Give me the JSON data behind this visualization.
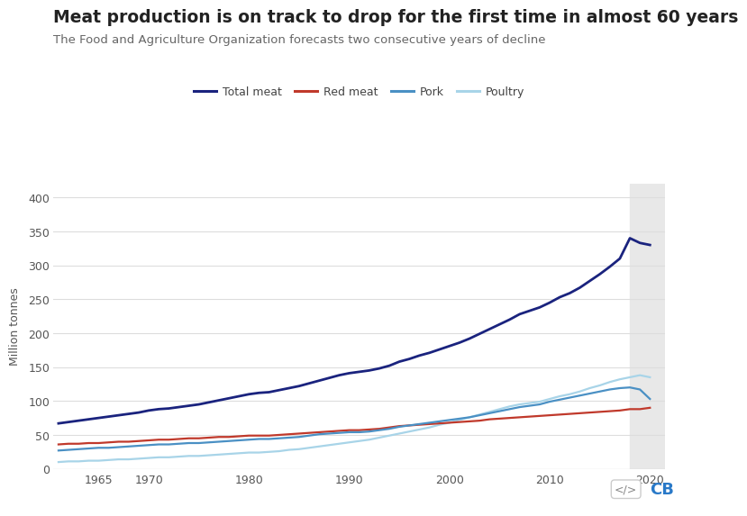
{
  "title": "Meat production is on track to drop for the first time in almost 60 years",
  "subtitle": "The Food and Agriculture Organization forecasts two consecutive years of decline",
  "ylabel": "Million tonnes",
  "title_fontsize": 13.5,
  "subtitle_fontsize": 9.5,
  "background_color": "#ffffff",
  "plot_bg_color": "#ffffff",
  "shade_color": "#e8e8e8",
  "shade_start": 2018,
  "shade_end": 2021.5,
  "years": [
    1961,
    1962,
    1963,
    1964,
    1965,
    1966,
    1967,
    1968,
    1969,
    1970,
    1971,
    1972,
    1973,
    1974,
    1975,
    1976,
    1977,
    1978,
    1979,
    1980,
    1981,
    1982,
    1983,
    1984,
    1985,
    1986,
    1987,
    1988,
    1989,
    1990,
    1991,
    1992,
    1993,
    1994,
    1995,
    1996,
    1997,
    1998,
    1999,
    2000,
    2001,
    2002,
    2003,
    2004,
    2005,
    2006,
    2007,
    2008,
    2009,
    2010,
    2011,
    2012,
    2013,
    2014,
    2015,
    2016,
    2017,
    2018,
    2019,
    2020
  ],
  "total_meat": [
    67,
    69,
    71,
    73,
    75,
    77,
    79,
    81,
    83,
    86,
    88,
    89,
    91,
    93,
    95,
    98,
    101,
    104,
    107,
    110,
    112,
    113,
    116,
    119,
    122,
    126,
    130,
    134,
    138,
    141,
    143,
    145,
    148,
    152,
    158,
    162,
    167,
    171,
    176,
    181,
    186,
    192,
    199,
    206,
    213,
    220,
    228,
    233,
    238,
    245,
    253,
    259,
    267,
    277,
    287,
    298,
    310,
    340,
    333,
    330
  ],
  "red_meat": [
    36,
    37,
    37,
    38,
    38,
    39,
    40,
    40,
    41,
    42,
    43,
    43,
    44,
    45,
    45,
    46,
    47,
    47,
    48,
    49,
    49,
    49,
    50,
    51,
    52,
    53,
    54,
    55,
    56,
    57,
    57,
    58,
    59,
    61,
    63,
    64,
    65,
    66,
    67,
    68,
    69,
    70,
    71,
    73,
    74,
    75,
    76,
    77,
    78,
    79,
    80,
    81,
    82,
    83,
    84,
    85,
    86,
    88,
    88,
    90
  ],
  "pork": [
    27,
    28,
    29,
    30,
    31,
    31,
    32,
    33,
    34,
    35,
    36,
    36,
    37,
    38,
    38,
    39,
    40,
    41,
    42,
    43,
    44,
    44,
    45,
    46,
    47,
    49,
    51,
    52,
    53,
    54,
    54,
    55,
    57,
    59,
    62,
    64,
    66,
    68,
    70,
    72,
    74,
    76,
    79,
    82,
    85,
    88,
    91,
    93,
    95,
    99,
    102,
    105,
    108,
    111,
    114,
    117,
    119,
    120,
    117,
    103
  ],
  "poultry": [
    10,
    11,
    11,
    12,
    12,
    13,
    14,
    14,
    15,
    16,
    17,
    17,
    18,
    19,
    19,
    20,
    21,
    22,
    23,
    24,
    24,
    25,
    26,
    28,
    29,
    31,
    33,
    35,
    37,
    39,
    41,
    43,
    46,
    49,
    52,
    55,
    58,
    61,
    65,
    68,
    72,
    76,
    80,
    84,
    88,
    92,
    95,
    97,
    99,
    103,
    107,
    110,
    114,
    119,
    123,
    128,
    132,
    135,
    138,
    135
  ],
  "total_color": "#1a237e",
  "red_meat_color": "#c0392b",
  "pork_color": "#4a90c4",
  "poultry_color": "#a8d4e8",
  "line_width": 1.6,
  "ylim": [
    0,
    420
  ],
  "yticks": [
    0,
    50,
    100,
    150,
    200,
    250,
    300,
    350,
    400
  ],
  "xlim_start": 1960.5,
  "xlim_end": 2021.5,
  "xticks": [
    1965,
    1970,
    1980,
    1990,
    2000,
    2010,
    2020
  ],
  "legend_labels": [
    "Total meat",
    "Red meat",
    "Pork",
    "Poultry"
  ],
  "grid_color": "#dddddd"
}
